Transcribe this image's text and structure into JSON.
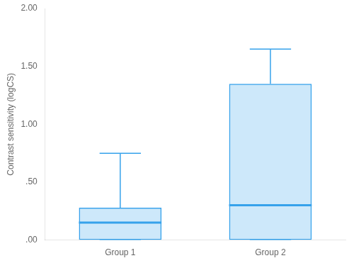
{
  "chart_data": {
    "type": "box",
    "categories": [
      "Group 1",
      "Group 2"
    ],
    "boxes": [
      {
        "whislo": 0.0,
        "q1": 0.0,
        "med": 0.15,
        "q3": 0.28,
        "whishi": 0.75
      },
      {
        "whislo": 0.0,
        "q1": 0.0,
        "med": 0.3,
        "q3": 1.35,
        "whishi": 1.65
      }
    ],
    "ylabel": "Contrast sensitivity (logCS)",
    "ylim": [
      0.0,
      2.0
    ],
    "yticks": [
      {
        "value": 0.0,
        "label": ".00"
      },
      {
        "value": 0.5,
        "label": ".50"
      },
      {
        "value": 1.0,
        "label": "1.00"
      },
      {
        "value": 1.5,
        "label": "1.50"
      },
      {
        "value": 2.0,
        "label": "2.00"
      }
    ],
    "grid": false
  }
}
